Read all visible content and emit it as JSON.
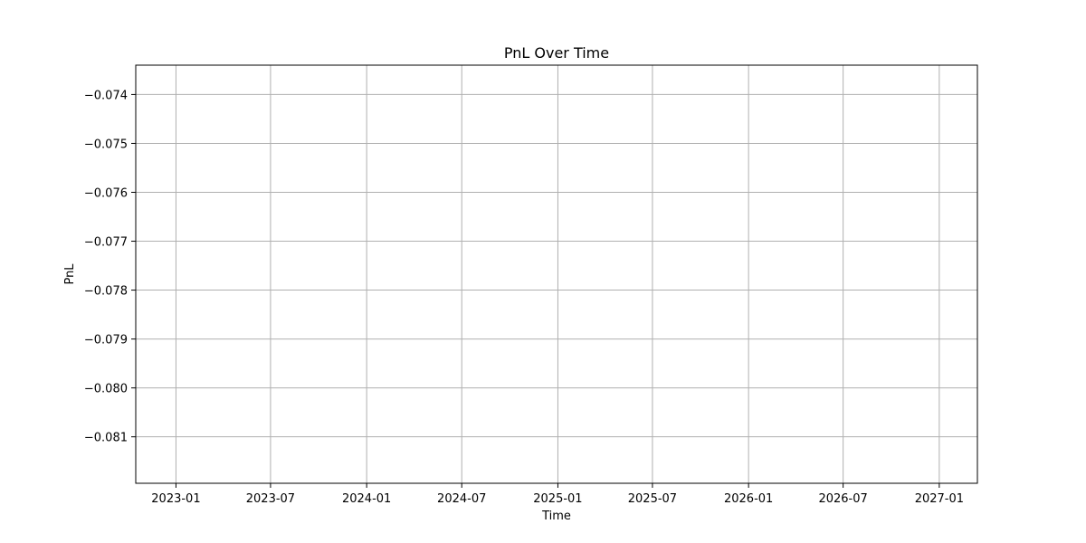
{
  "chart_data": {
    "type": "line",
    "title": "PnL Over Time",
    "xlabel": "Time",
    "ylabel": "PnL",
    "x_ticks": [
      "2023-01",
      "2023-07",
      "2024-01",
      "2024-07",
      "2025-01",
      "2025-07",
      "2026-01",
      "2026-07",
      "2027-01"
    ],
    "y_ticks": [
      -0.074,
      -0.075,
      -0.076,
      -0.077,
      -0.078,
      -0.079,
      -0.08,
      -0.081
    ],
    "y_tick_labels": [
      "−0.074",
      "−0.075",
      "−0.076",
      "−0.077",
      "−0.078",
      "−0.079",
      "−0.080",
      "−0.081"
    ],
    "xlim": [
      "2022-10-16",
      "2027-03-15"
    ],
    "ylim": [
      -0.08195,
      -0.0734
    ],
    "grid": true,
    "series": [
      {
        "x": [],
        "values": [],
        "color": "#1f77b4"
      }
    ]
  }
}
